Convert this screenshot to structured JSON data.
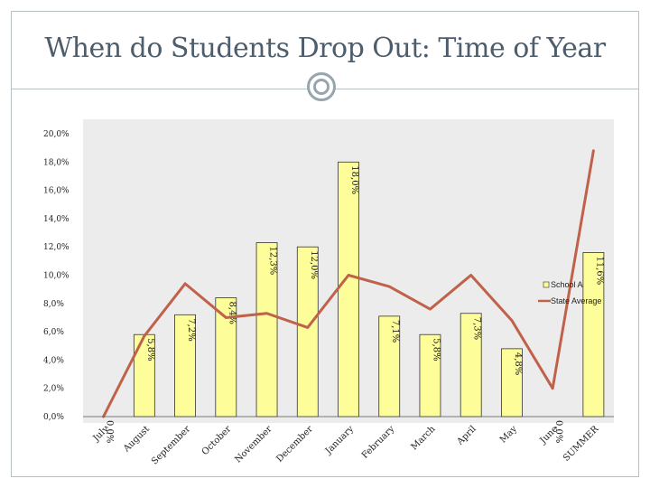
{
  "slide": {
    "title": "When do Students Drop Out:  Time of Year"
  },
  "colors": {
    "bar_fill": "#fdfd99",
    "bar_stroke": "#333333",
    "line": "#c0614a",
    "plot_background": "#ececec",
    "title_text": "#4d5d6b"
  },
  "chart_data": {
    "type": "bar",
    "categories": [
      "July",
      "August",
      "September",
      "October",
      "November",
      "December",
      "January",
      "February",
      "March",
      "April",
      "May",
      "June",
      "SUMMER"
    ],
    "ylim": [
      0,
      20
    ],
    "y_ticks": [
      0,
      2,
      4,
      6,
      8,
      10,
      12,
      14,
      16,
      18,
      20
    ],
    "y_tick_labels": [
      "0,0%",
      "2,0%",
      "4,0%",
      "6,0%",
      "8,0%",
      "10,0%",
      "12,0%",
      "14,0%",
      "16,0%",
      "18,0%",
      "20,0%"
    ],
    "grid": false,
    "legend_position": "right",
    "series": [
      {
        "name": "School A",
        "kind": "bar",
        "values": [
          0.0,
          5.8,
          7.2,
          8.4,
          12.3,
          12.0,
          18.0,
          7.1,
          5.8,
          7.3,
          4.8,
          0.0,
          11.6
        ],
        "data_labels": [
          "0,0%",
          "5,8%",
          "7,2%",
          "8,4%",
          "12,3%",
          "12,0%",
          "18,0%",
          "7,1%",
          "5,8%",
          "7,3%",
          "4,8%",
          "0,0%",
          "11,6%"
        ]
      },
      {
        "name": "State Average",
        "kind": "line",
        "values": [
          0.0,
          5.7,
          9.4,
          7.0,
          7.3,
          6.3,
          10.0,
          9.2,
          7.6,
          10.0,
          6.8,
          2.0,
          18.8
        ]
      }
    ]
  }
}
